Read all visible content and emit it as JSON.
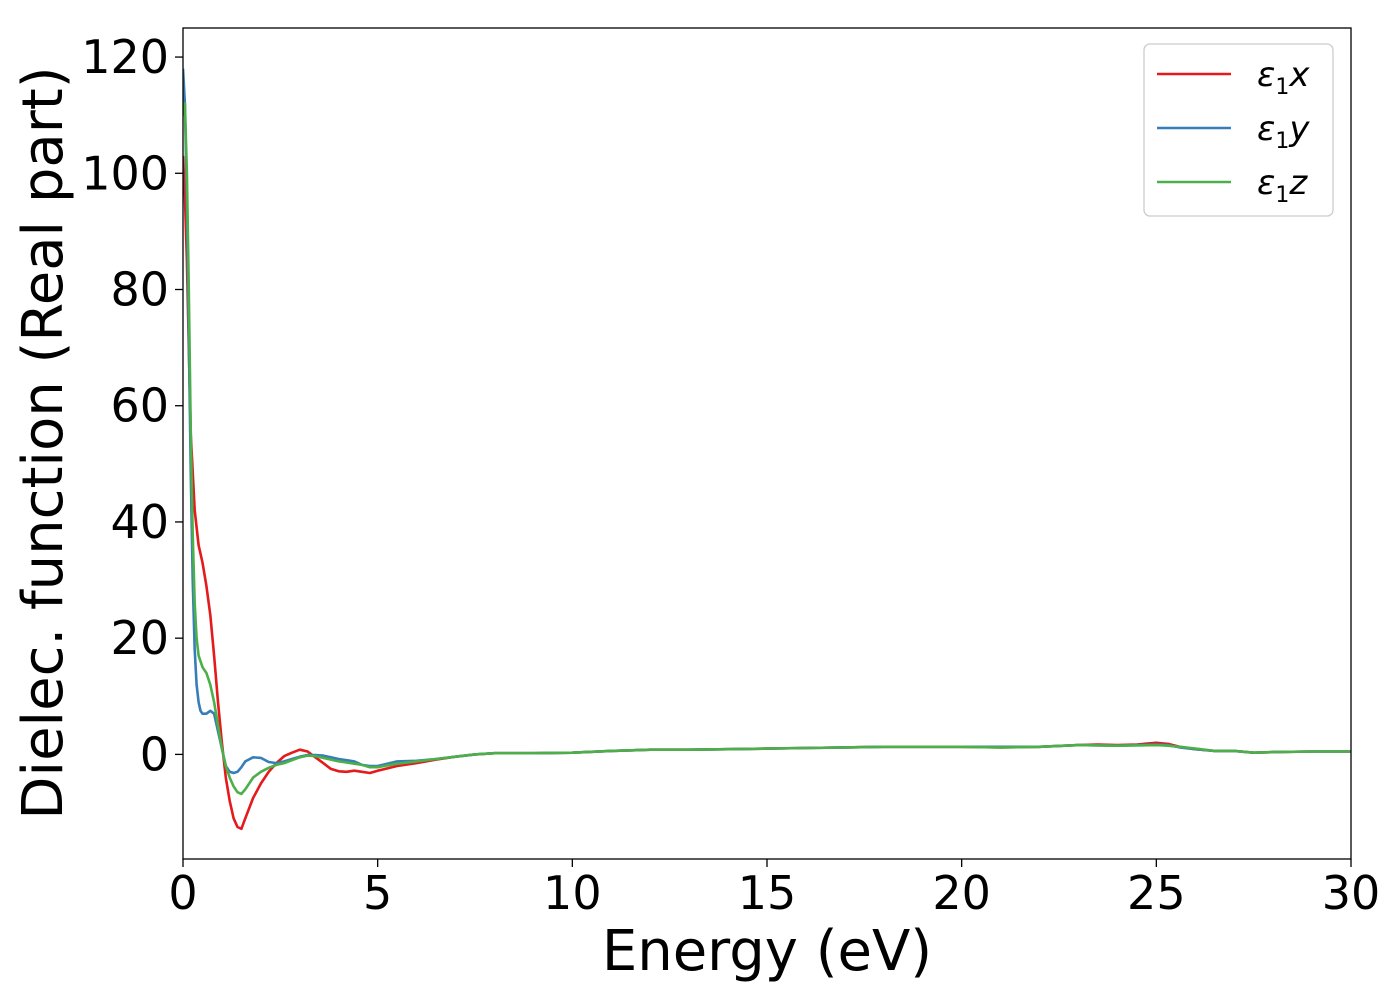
{
  "chart_data": {
    "type": "line",
    "xlabel": "Energy (eV)",
    "ylabel": "Dielec. function (Real part)",
    "xlim": [
      0,
      30
    ],
    "ylim": [
      -18,
      125
    ],
    "xticks": [
      0,
      5,
      10,
      15,
      20,
      25,
      30
    ],
    "yticks": [
      0,
      20,
      40,
      60,
      80,
      100,
      120
    ],
    "grid": false,
    "legend_position": "top-right",
    "series": [
      {
        "name": "ε1x",
        "legend_base": "ε",
        "legend_sub": "1",
        "legend_suffix": "x",
        "color": "#e41a1c",
        "x": [
          0.0,
          0.05,
          0.1,
          0.15,
          0.2,
          0.3,
          0.4,
          0.5,
          0.6,
          0.7,
          0.8,
          0.9,
          1.0,
          1.1,
          1.2,
          1.3,
          1.4,
          1.5,
          1.6,
          1.8,
          2.0,
          2.2,
          2.4,
          2.6,
          2.8,
          3.0,
          3.2,
          3.4,
          3.6,
          3.8,
          4.0,
          4.2,
          4.4,
          4.6,
          4.8,
          5.0,
          5.5,
          6.0,
          6.5,
          7.0,
          7.5,
          8.0,
          8.5,
          9.0,
          10.0,
          11.0,
          12.0,
          13.0,
          14.0,
          15.0,
          16.0,
          17.0,
          18.0,
          19.0,
          20.0,
          21.0,
          22.0,
          23.0,
          23.5,
          24.0,
          24.5,
          25.0,
          25.3,
          25.6,
          26.0,
          26.5,
          27.0,
          27.5,
          28.0,
          29.0,
          30.0
        ],
        "y": [
          103,
          96,
          85,
          70,
          55,
          42,
          36,
          33,
          29,
          24,
          17,
          9,
          2,
          -4,
          -8,
          -11,
          -12.5,
          -12.8,
          -11,
          -7.5,
          -5,
          -3,
          -1.5,
          -0.3,
          0.3,
          0.8,
          0.5,
          -0.5,
          -1.5,
          -2.5,
          -2.9,
          -3.0,
          -2.8,
          -3.0,
          -3.2,
          -2.8,
          -2.0,
          -1.5,
          -0.9,
          -0.4,
          0,
          0.2,
          0.2,
          0.2,
          0.3,
          0.6,
          0.8,
          0.8,
          0.9,
          1.0,
          1.1,
          1.2,
          1.3,
          1.3,
          1.3,
          1.2,
          1.3,
          1.6,
          1.7,
          1.6,
          1.7,
          2.0,
          1.8,
          1.3,
          0.9,
          0.6,
          0.6,
          0.3,
          0.4,
          0.5,
          0.5
        ]
      },
      {
        "name": "ε1y",
        "legend_base": "ε",
        "legend_sub": "1",
        "legend_suffix": "y",
        "color": "#377eb8",
        "x": [
          0.0,
          0.05,
          0.1,
          0.15,
          0.2,
          0.25,
          0.3,
          0.35,
          0.4,
          0.45,
          0.5,
          0.6,
          0.7,
          0.8,
          0.9,
          1.0,
          1.1,
          1.2,
          1.3,
          1.4,
          1.5,
          1.6,
          1.8,
          2.0,
          2.2,
          2.4,
          2.6,
          2.8,
          3.0,
          3.2,
          3.4,
          3.6,
          3.8,
          4.0,
          4.2,
          4.4,
          4.6,
          4.8,
          5.0,
          5.5,
          6.0,
          6.5,
          7.0,
          7.5,
          8.0,
          9.0,
          10.0,
          11.0,
          12.0,
          13.0,
          14.0,
          15.0,
          16.0,
          17.0,
          18.0,
          19.0,
          20.0,
          21.0,
          22.0,
          23.0,
          24.0,
          25.0,
          25.3,
          25.6,
          26.0,
          26.5,
          27.0,
          27.5,
          28.0,
          29.0,
          30.0
        ],
        "y": [
          118,
          112,
          95,
          72,
          48,
          30,
          18,
          12,
          9,
          7.5,
          7,
          7,
          7.5,
          7,
          4,
          1,
          -2,
          -3,
          -3.2,
          -3,
          -2.2,
          -1.2,
          -0.5,
          -0.6,
          -1.3,
          -1.5,
          -1.2,
          -0.8,
          -0.4,
          -0.1,
          -0.1,
          -0.2,
          -0.5,
          -0.8,
          -1.0,
          -1.2,
          -1.8,
          -2.0,
          -2.0,
          -1.2,
          -1.1,
          -0.8,
          -0.4,
          0,
          0.2,
          0.2,
          0.3,
          0.6,
          0.8,
          0.8,
          0.9,
          1.0,
          1.1,
          1.2,
          1.3,
          1.3,
          1.3,
          1.3,
          1.3,
          1.6,
          1.5,
          1.7,
          1.6,
          1.2,
          0.9,
          0.6,
          0.6,
          0.3,
          0.4,
          0.5,
          0.5
        ]
      },
      {
        "name": "ε1z",
        "legend_base": "ε",
        "legend_sub": "1",
        "legend_suffix": "z",
        "color": "#4daf4a",
        "x": [
          0.0,
          0.05,
          0.1,
          0.15,
          0.2,
          0.25,
          0.3,
          0.35,
          0.4,
          0.5,
          0.6,
          0.7,
          0.8,
          0.9,
          1.0,
          1.1,
          1.2,
          1.3,
          1.4,
          1.5,
          1.6,
          1.8,
          2.0,
          2.2,
          2.4,
          2.6,
          2.8,
          3.0,
          3.2,
          3.4,
          3.6,
          3.8,
          4.0,
          4.2,
          4.4,
          4.6,
          4.8,
          5.0,
          5.5,
          6.0,
          6.5,
          7.0,
          7.5,
          8.0,
          9.0,
          10.0,
          11.0,
          12.0,
          13.0,
          14.0,
          15.0,
          16.0,
          17.0,
          18.0,
          19.0,
          20.0,
          21.0,
          22.0,
          23.0,
          24.0,
          25.0,
          25.3,
          25.6,
          26.0,
          26.5,
          27.0,
          27.5,
          28.0,
          29.0,
          30.0
        ],
        "y": [
          110,
          112,
          100,
          80,
          55,
          38,
          26,
          20,
          17,
          15,
          14,
          12,
          9,
          5,
          1,
          -2,
          -4,
          -5.5,
          -6.5,
          -6.8,
          -6,
          -4,
          -3,
          -2.3,
          -1.8,
          -1.5,
          -1.0,
          -0.5,
          -0.2,
          -0.3,
          -0.6,
          -0.9,
          -1.2,
          -1.4,
          -1.6,
          -1.8,
          -2.2,
          -2.2,
          -1.6,
          -1.2,
          -0.8,
          -0.4,
          0,
          0.2,
          0.2,
          0.3,
          0.6,
          0.8,
          0.8,
          0.9,
          1.0,
          1.1,
          1.2,
          1.3,
          1.3,
          1.3,
          1.2,
          1.3,
          1.6,
          1.5,
          1.6,
          1.5,
          1.3,
          1.0,
          0.6,
          0.6,
          0.3,
          0.4,
          0.5,
          0.5
        ]
      }
    ]
  }
}
